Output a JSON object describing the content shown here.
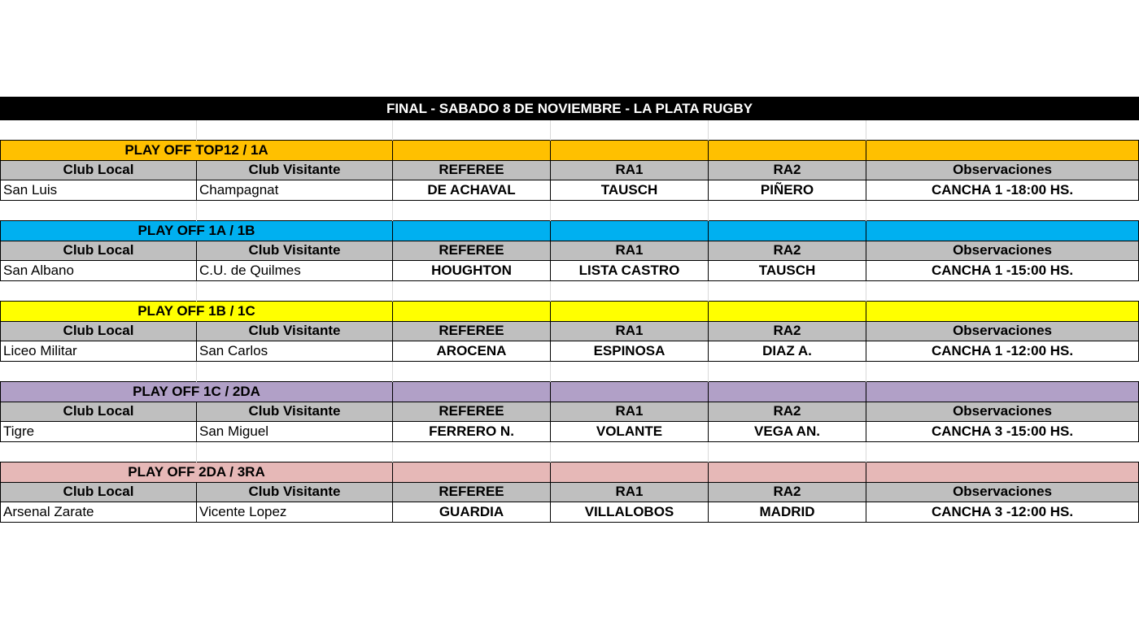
{
  "title": "FINAL - SABADO 8 DE NOVIEMBRE - LA PLATA RUGBY",
  "headers": [
    "Club Local",
    "Club Visitante",
    "REFEREE",
    "RA1",
    "RA2",
    "Observaciones"
  ],
  "colors": {
    "header_gray": "#BFBFBF",
    "title_bg": "#000000"
  },
  "sections": [
    {
      "label": "PLAY OFF TOP12 / 1A",
      "color": "#FFC000",
      "match": [
        "San Luis",
        "Champagnat",
        "DE ACHAVAL",
        "TAUSCH",
        "PIÑERO",
        "CANCHA 1 -18:00 HS."
      ]
    },
    {
      "label": "PLAY OFF 1A / 1B",
      "color": "#00B0F0",
      "match": [
        "San Albano",
        "C.U. de Quilmes",
        "HOUGHTON",
        "LISTA CASTRO",
        "TAUSCH",
        "CANCHA 1 -15:00 HS."
      ]
    },
    {
      "label": "PLAY OFF 1B / 1C",
      "color": "#FFFF00",
      "match": [
        "Liceo Militar",
        "San Carlos",
        "AROCENA",
        "ESPINOSA",
        "DIAZ A.",
        "CANCHA 1 -12:00 HS."
      ]
    },
    {
      "label": "PLAY OFF 1C / 2DA",
      "color": "#B1A0C7",
      "match": [
        "Tigre",
        "San Miguel",
        "FERRERO N.",
        "VOLANTE",
        "VEGA AN.",
        "CANCHA 3 -15:00 HS."
      ]
    },
    {
      "label": "PLAY OFF 2DA / 3RA",
      "color": "#E6B8B7",
      "match": [
        "Arsenal Zarate",
        "Vicente Lopez",
        "GUARDIA",
        "VILLALOBOS",
        "MADRID",
        "CANCHA 3 -12:00 HS."
      ]
    }
  ]
}
